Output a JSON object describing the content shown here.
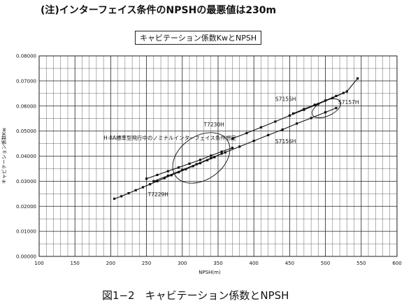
{
  "header_note": "(注)インターフェイス条件のNPSHの最悪値は230m",
  "figure_caption": "図1−2　キャビテーション係数とNPSH",
  "chart_data": {
    "type": "scatter",
    "title": "キャビテーション係数KwとNPSH",
    "xlabel": "NPSH(m)",
    "ylabel": "キャビテーション係数Kw",
    "xlim": [
      100,
      600
    ],
    "ylim": [
      0,
      0.08
    ],
    "xticks": [
      "100",
      "150",
      "200",
      "250",
      "300",
      "350",
      "400",
      "450",
      "500",
      "550",
      "600"
    ],
    "yticks": [
      "0.00000",
      "0.01000",
      "0.02000",
      "0.03000",
      "0.04000",
      "0.05000",
      "0.06000",
      "0.07000",
      "0.08000"
    ],
    "grid": true,
    "series": [
      {
        "name": "T7229H",
        "points": [
          [
            205,
            0.023
          ],
          [
            215,
            0.024
          ],
          [
            225,
            0.0252
          ],
          [
            235,
            0.0264
          ],
          [
            245,
            0.0276
          ],
          [
            255,
            0.0288
          ],
          [
            265,
            0.03
          ],
          [
            275,
            0.0312
          ],
          [
            285,
            0.0324
          ],
          [
            295,
            0.0336
          ],
          [
            305,
            0.0348
          ],
          [
            315,
            0.036
          ],
          [
            325,
            0.0372
          ],
          [
            335,
            0.0384
          ],
          [
            345,
            0.0396
          ],
          [
            355,
            0.041
          ]
        ]
      },
      {
        "name": "T7230H",
        "points": [
          [
            250,
            0.031
          ],
          [
            265,
            0.0325
          ],
          [
            280,
            0.034
          ],
          [
            295,
            0.0355
          ],
          [
            310,
            0.037
          ],
          [
            325,
            0.0385
          ],
          [
            340,
            0.0402
          ],
          [
            355,
            0.0418
          ],
          [
            370,
            0.0433
          ]
        ]
      },
      {
        "name": "S7156H",
        "points": [
          [
            260,
            0.03
          ],
          [
            280,
            0.0322
          ],
          [
            300,
            0.0345
          ],
          [
            320,
            0.0368
          ],
          [
            340,
            0.0392
          ],
          [
            360,
            0.0415
          ],
          [
            380,
            0.0438
          ],
          [
            400,
            0.0461
          ],
          [
            420,
            0.0484
          ],
          [
            440,
            0.0506
          ],
          [
            460,
            0.053
          ],
          [
            480,
            0.0552
          ],
          [
            500,
            0.0575
          ],
          [
            515,
            0.0592
          ]
        ]
      },
      {
        "name": "S7155H",
        "points": [
          [
            370,
            0.047
          ],
          [
            390,
            0.0492
          ],
          [
            410,
            0.0515
          ],
          [
            430,
            0.0538
          ],
          [
            450,
            0.0562
          ],
          [
            470,
            0.0585
          ],
          [
            490,
            0.0608
          ],
          [
            510,
            0.0632
          ],
          [
            530,
            0.0658
          ],
          [
            545,
            0.071
          ]
        ]
      },
      {
        "name": "S7157H",
        "points": [
          [
            455,
            0.057
          ],
          [
            470,
            0.0588
          ],
          [
            485,
            0.0605
          ],
          [
            500,
            0.0622
          ],
          [
            515,
            0.064
          ],
          [
            525,
            0.0652
          ]
        ]
      }
    ],
    "annotations": [
      {
        "text": "H-IIA標準型飛行中のノミナルインターフェイス条件想定",
        "x": 190,
        "y": 0.0465
      },
      {
        "text": "T7230H",
        "x": 330,
        "y": 0.0518
      },
      {
        "text": "S7155H",
        "x": 430,
        "y": 0.062
      },
      {
        "text": "S7157H",
        "x": 518,
        "y": 0.0608
      },
      {
        "text": "S7156H",
        "x": 430,
        "y": 0.0452
      },
      {
        "text": "T7229H",
        "x": 252,
        "y": 0.024
      }
    ]
  }
}
